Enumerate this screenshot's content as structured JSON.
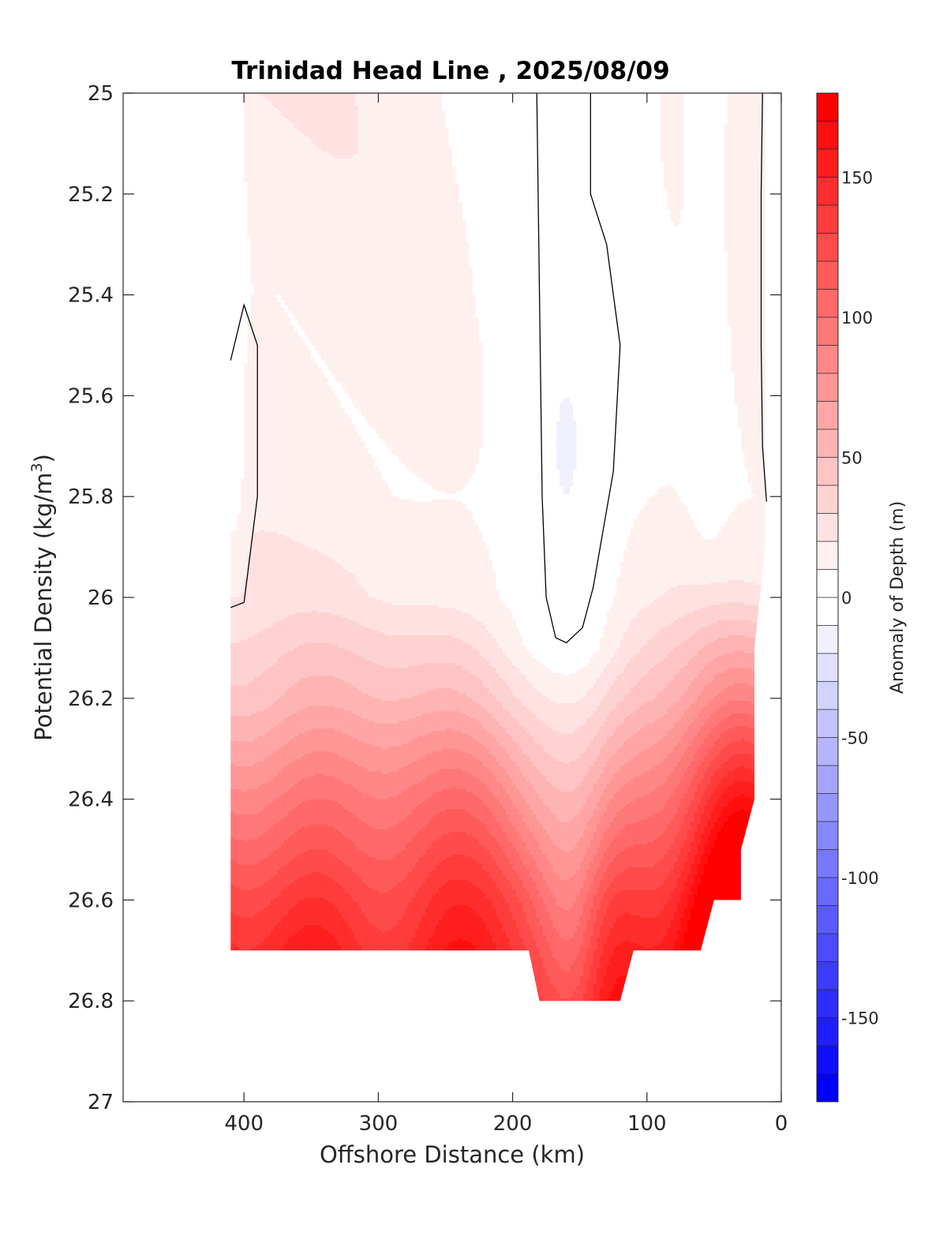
{
  "chart_data": {
    "type": "contour",
    "title": "Trinidad Head Line , 2025/08/09",
    "xlabel": "Offshore Distance (km)",
    "ylabel": "Potential Density (kg/m",
    "ylabel_sup": "3",
    "ylabel_close": ")",
    "xlim": [
      490,
      0
    ],
    "ylim": [
      25,
      27
    ],
    "xticks": [
      {
        "value": 400,
        "label": "400"
      },
      {
        "value": 300,
        "label": "300"
      },
      {
        "value": 200,
        "label": "200"
      },
      {
        "value": 100,
        "label": "100"
      },
      {
        "value": 0,
        "label": "0"
      }
    ],
    "yticks": [
      {
        "value": 25,
        "label": "25"
      },
      {
        "value": 25.2,
        "label": "25.2"
      },
      {
        "value": 25.4,
        "label": "25.4"
      },
      {
        "value": 25.6,
        "label": "25.6"
      },
      {
        "value": 25.8,
        "label": "25.8"
      },
      {
        "value": 26,
        "label": "26"
      },
      {
        "value": 26.2,
        "label": "26.2"
      },
      {
        "value": 26.4,
        "label": "26.4"
      },
      {
        "value": 26.6,
        "label": "26.6"
      },
      {
        "value": 26.8,
        "label": "26.8"
      },
      {
        "value": 27,
        "label": "27"
      }
    ],
    "colorbar": {
      "label": "Anomaly of Depth (m)",
      "range": [
        -180,
        180
      ],
      "step": 10,
      "low_color": "#0000ff",
      "high_color": "#ff0000",
      "ticks": [
        {
          "value": 150,
          "label": "150"
        },
        {
          "value": 100,
          "label": "100"
        },
        {
          "value": 50,
          "label": "50"
        },
        {
          "value": 0,
          "label": "0"
        },
        {
          "value": -50,
          "label": "-50"
        },
        {
          "value": -100,
          "label": "-100"
        },
        {
          "value": -150,
          "label": "-150"
        }
      ]
    },
    "data_extent": {
      "x_max": 410,
      "x_min": 20,
      "bottom_sigma_offshore": 26.7,
      "bottom_sigma_trough": 26.8,
      "trough_x_range": [
        180,
        120
      ],
      "inshore_bottom_steps": [
        {
          "x": 60,
          "sigma": 26.7
        },
        {
          "x": 50,
          "sigma": 26.6
        },
        {
          "x": 30,
          "sigma": 26.5
        },
        {
          "x": 20,
          "sigma": 26.4
        }
      ]
    },
    "anomaly_field": {
      "description": "Depth anomaly (m): near zero above sigma 26.0, increasing with density; trough of zero anomaly near 160 km; maximum near coast.",
      "base_profile": [
        {
          "sigma": 25.0,
          "anomaly": 18
        },
        {
          "sigma": 25.4,
          "anomaly": 14
        },
        {
          "sigma": 25.8,
          "anomaly": 14
        },
        {
          "sigma": 26.0,
          "anomaly": 20
        },
        {
          "sigma": 26.2,
          "anomaly": 50
        },
        {
          "sigma": 26.4,
          "anomaly": 95
        },
        {
          "sigma": 26.5,
          "anomaly": 115
        },
        {
          "sigma": 26.6,
          "anomaly": 135
        },
        {
          "sigma": 26.7,
          "anomaly": 150
        }
      ],
      "zero_trough_center_x": 160,
      "negative_patch": {
        "x": 160,
        "sigma": 25.7,
        "anomaly": -8
      },
      "coastal_max": {
        "x": 30,
        "sigma": 26.55,
        "anomaly": 180
      }
    },
    "zero_contours": [
      {
        "name": "offshore",
        "points": [
          [
            410,
            25.53
          ],
          [
            400,
            25.42
          ],
          [
            390,
            25.5
          ],
          [
            390,
            25.8
          ],
          [
            400,
            26.01
          ],
          [
            410,
            26.02
          ]
        ]
      },
      {
        "name": "trough",
        "points": [
          [
            182,
            25.0
          ],
          [
            178,
            25.8
          ],
          [
            175,
            26.0
          ],
          [
            168,
            26.08
          ],
          [
            160,
            26.09
          ],
          [
            148,
            26.06
          ],
          [
            140,
            25.98
          ],
          [
            125,
            25.75
          ],
          [
            120,
            25.5
          ],
          [
            130,
            25.3
          ],
          [
            142,
            25.2
          ],
          [
            142,
            25.0
          ]
        ]
      },
      {
        "name": "coastal",
        "points": [
          [
            14,
            25.0
          ],
          [
            15,
            25.2
          ],
          [
            15,
            25.5
          ],
          [
            14,
            25.7
          ],
          [
            11,
            25.81
          ]
        ]
      }
    ]
  }
}
